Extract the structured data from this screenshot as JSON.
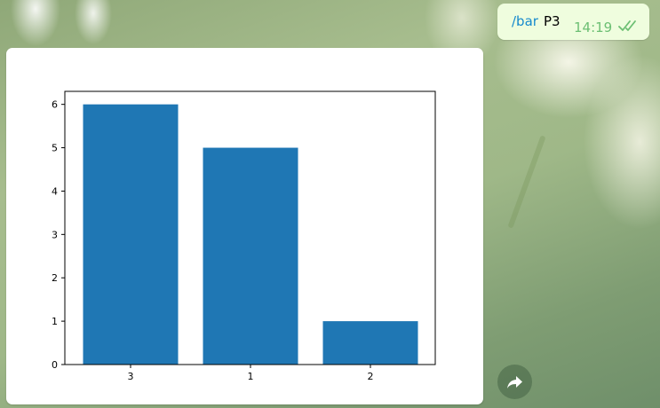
{
  "message_out": {
    "command": "/bar",
    "argument": "P3",
    "time": "14:19",
    "status_icon": "double-check-icon",
    "command_color": "#168acd",
    "time_color": "#6cbf73",
    "bubble_color": "#effdde"
  },
  "photo_message": {
    "forward_icon": "forward-arrow-icon"
  },
  "chart_data": {
    "type": "bar",
    "categories": [
      "3",
      "1",
      "2"
    ],
    "values": [
      6,
      5,
      1
    ],
    "yticks": [
      "0",
      "1",
      "2",
      "3",
      "4",
      "5",
      "6"
    ],
    "ylim": [
      0,
      6.3
    ],
    "bar_color": "#1f77b4",
    "title": "",
    "xlabel": "",
    "ylabel": "",
    "grid": false
  }
}
